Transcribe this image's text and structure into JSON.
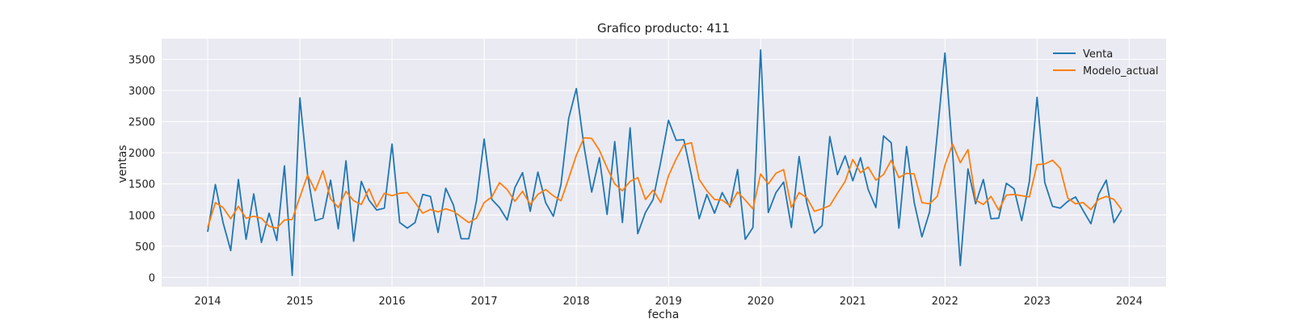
{
  "chart_data": {
    "type": "line",
    "title": "Grafico producto: 411",
    "xlabel": "fecha",
    "ylabel": "ventas",
    "xlim": [
      2013.5,
      2024.4
    ],
    "ylim": [
      -150,
      3830
    ],
    "x_ticks": [
      "2014",
      "2015",
      "2016",
      "2017",
      "2018",
      "2019",
      "2020",
      "2021",
      "2022",
      "2023",
      "2024"
    ],
    "y_ticks": [
      "0",
      "500",
      "1000",
      "1500",
      "2000",
      "2500",
      "3000",
      "3500"
    ],
    "grid": true,
    "legend_position": "top-right",
    "x_start_year": 2014,
    "series": [
      {
        "name": "Venta",
        "color": "#1f77b4",
        "values": [
          730,
          1490,
          880,
          430,
          1570,
          610,
          1340,
          560,
          1030,
          590,
          1790,
          30,
          2880,
          1650,
          910,
          950,
          1560,
          780,
          1870,
          580,
          1540,
          1240,
          1080,
          1110,
          2140,
          880,
          790,
          880,
          1330,
          1300,
          720,
          1430,
          1160,
          620,
          620,
          1230,
          2220,
          1250,
          1120,
          920,
          1440,
          1680,
          1060,
          1690,
          1200,
          980,
          1490,
          2550,
          3030,
          2100,
          1370,
          1920,
          1010,
          2180,
          880,
          2400,
          700,
          1040,
          1250,
          1860,
          2520,
          2200,
          2210,
          1630,
          940,
          1330,
          1030,
          1360,
          1130,
          1730,
          610,
          800,
          3650,
          1040,
          1360,
          1530,
          800,
          1940,
          1200,
          710,
          830,
          2260,
          1650,
          1950,
          1550,
          1920,
          1410,
          1120,
          2270,
          2160,
          790,
          2100,
          1200,
          650,
          1050,
          2300,
          3600,
          2000,
          190,
          1740,
          1180,
          1570,
          940,
          950,
          1510,
          1420,
          910,
          1540,
          2890,
          1520,
          1140,
          1110,
          1220,
          1290,
          1070,
          860,
          1330,
          1560,
          880,
          1080
        ]
      },
      {
        "name": "Modelo_actual",
        "color": "#ff7f0e",
        "values": [
          800,
          1200,
          1120,
          940,
          1140,
          950,
          980,
          950,
          820,
          790,
          920,
          930,
          1290,
          1640,
          1390,
          1710,
          1260,
          1120,
          1380,
          1230,
          1170,
          1420,
          1130,
          1350,
          1310,
          1350,
          1360,
          1200,
          1030,
          1090,
          1050,
          1100,
          1060,
          970,
          880,
          950,
          1200,
          1290,
          1520,
          1410,
          1220,
          1380,
          1170,
          1330,
          1410,
          1310,
          1230,
          1590,
          1960,
          2240,
          2230,
          2040,
          1760,
          1500,
          1390,
          1540,
          1600,
          1250,
          1400,
          1200,
          1630,
          1900,
          2130,
          2160,
          1570,
          1390,
          1250,
          1240,
          1150,
          1370,
          1240,
          1100,
          1660,
          1500,
          1670,
          1730,
          1120,
          1360,
          1280,
          1060,
          1100,
          1150,
          1350,
          1540,
          1890,
          1680,
          1770,
          1560,
          1650,
          1880,
          1600,
          1670,
          1660,
          1200,
          1180,
          1300,
          1800,
          2140,
          1840,
          2050,
          1240,
          1170,
          1300,
          1080,
          1320,
          1330,
          1310,
          1290,
          1810,
          1820,
          1880,
          1750,
          1270,
          1180,
          1200,
          1090,
          1250,
          1300,
          1250,
          1090
        ]
      }
    ]
  }
}
